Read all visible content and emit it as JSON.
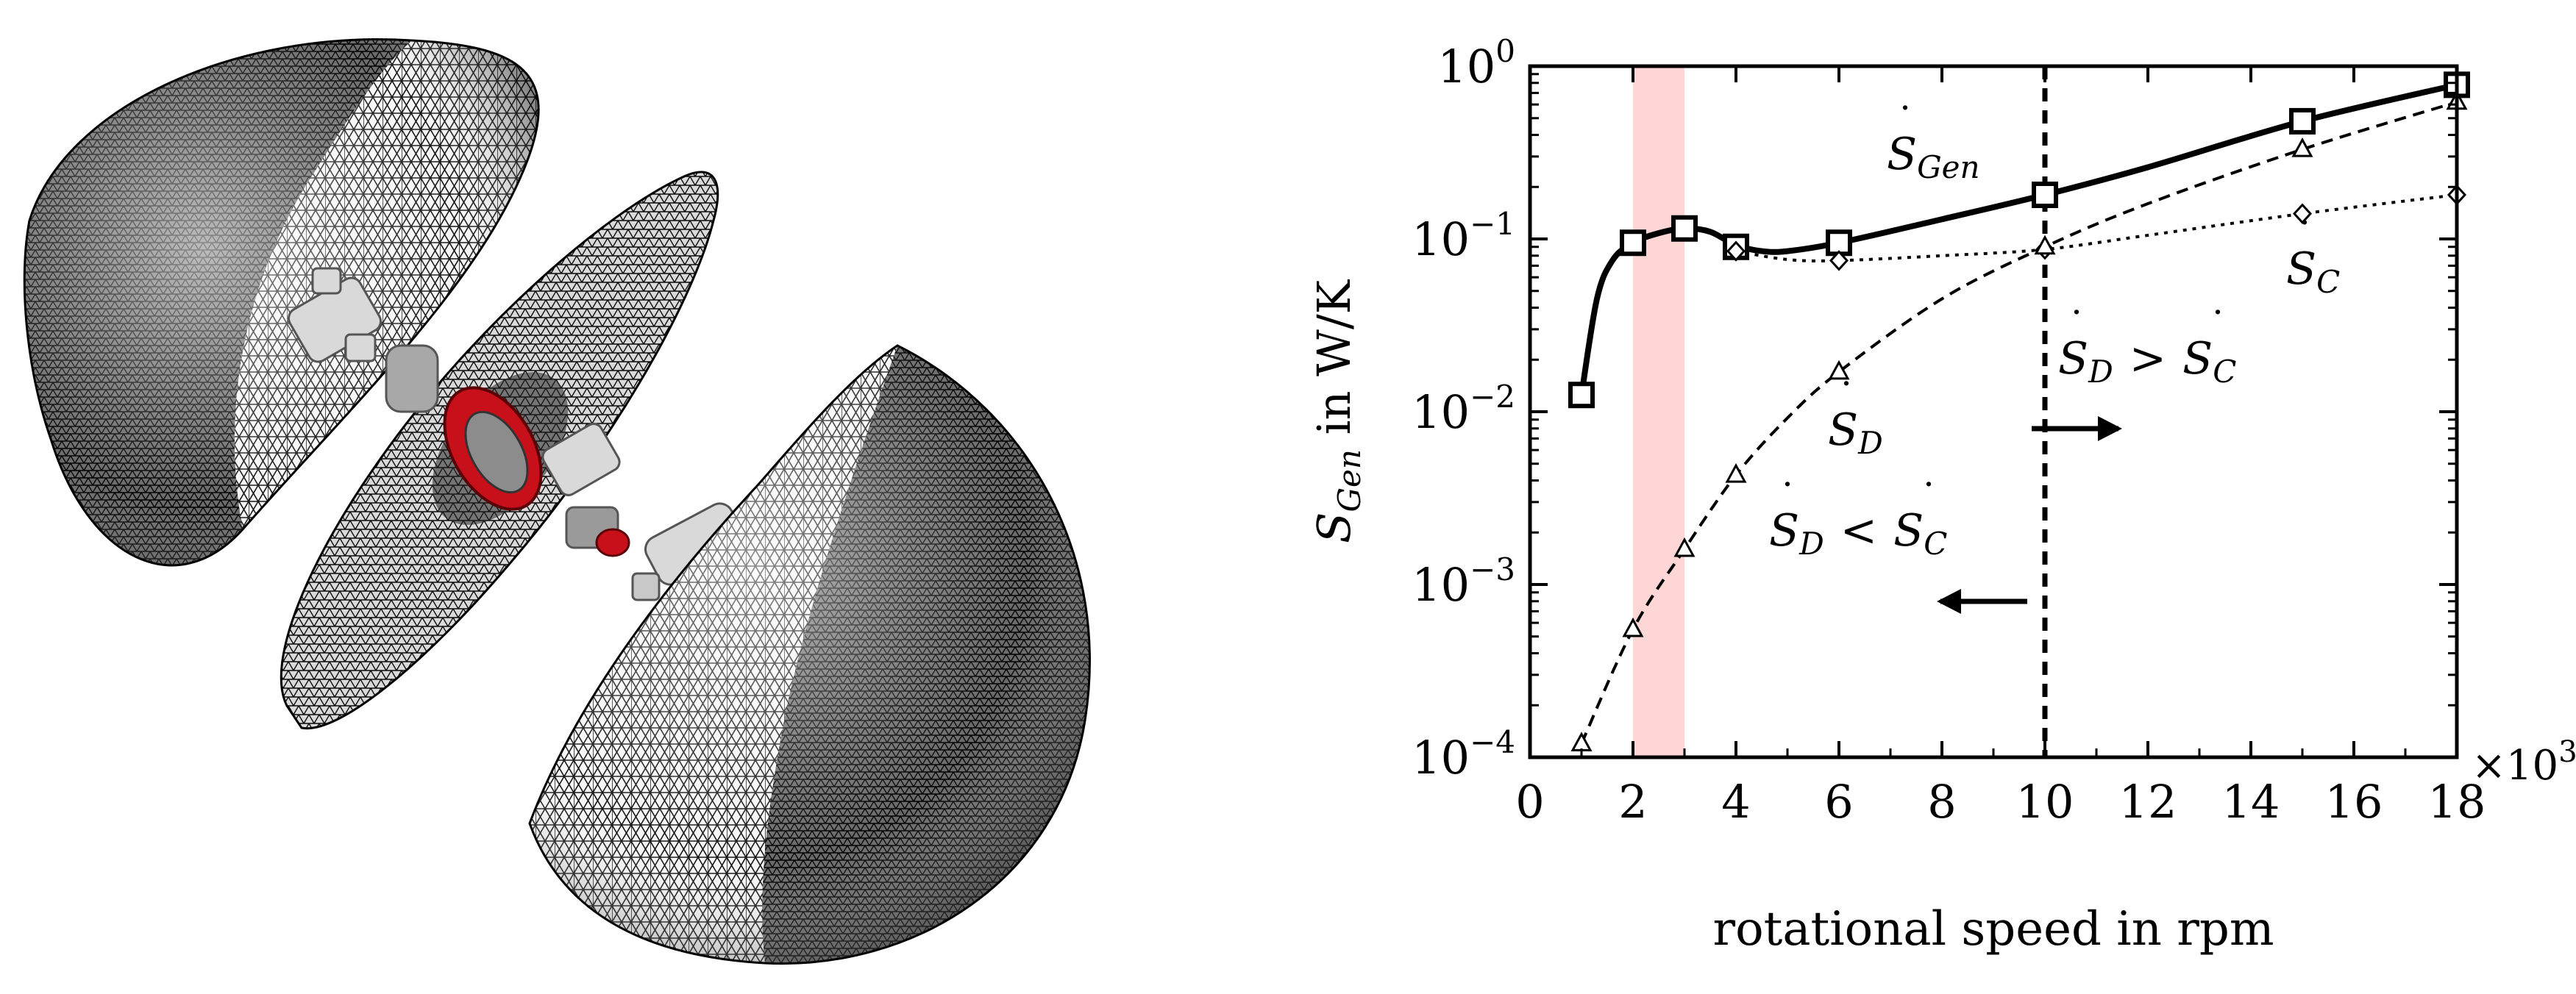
{
  "figure": {
    "left_panel": "fe-mesh-exploded-view"
  },
  "colors": {
    "mesh_stroke": "#111111",
    "mesh_fill": "#f4f4f4",
    "band": "#ffd6d6",
    "component_red": "#c8101a",
    "component_grey": "#bdbdbd",
    "ink": "#000000"
  },
  "chart_data": {
    "type": "line",
    "yscale": "log",
    "xlim": [
      0,
      18
    ],
    "ylim_exp": [
      -4,
      0
    ],
    "x_multiplier_label": "×10",
    "x_multiplier_exp": "3",
    "xticks": [
      "0",
      "2",
      "4",
      "6",
      "8",
      "10",
      "12",
      "14",
      "16",
      "18"
    ],
    "yticks": [
      {
        "base": "10",
        "exp": "0",
        "value": 0
      },
      {
        "base": "10",
        "exp": "−1",
        "value": -1
      },
      {
        "base": "10",
        "exp": "−2",
        "value": -2
      },
      {
        "base": "10",
        "exp": "−3",
        "value": -3
      },
      {
        "base": "10",
        "exp": "−4",
        "value": -4
      }
    ],
    "xlabel": "rotational speed in rpm",
    "ylabel": {
      "sym": "S",
      "sub": "Gen",
      "text": " in W/K"
    },
    "highlight_band": {
      "x": [
        2,
        3
      ]
    },
    "vline": {
      "x": 10
    },
    "series": [
      {
        "name": "S_Gen",
        "marker": "square",
        "style": "solid",
        "x": [
          1,
          2,
          3,
          4,
          6,
          10,
          15,
          18
        ],
        "y": [
          0.0125,
          0.095,
          0.115,
          0.09,
          0.095,
          0.18,
          0.48,
          0.78
        ],
        "curve_x": [
          1,
          1.3,
          1.6,
          2,
          2.5,
          3,
          3.5,
          4,
          4.5,
          5,
          6,
          8,
          10,
          12,
          15,
          18
        ],
        "curve_y": [
          0.0125,
          0.045,
          0.075,
          0.095,
          0.108,
          0.115,
          0.11,
          0.092,
          0.085,
          0.085,
          0.095,
          0.13,
          0.18,
          0.26,
          0.48,
          0.78
        ]
      },
      {
        "name": "S_C",
        "marker": "diamond",
        "style": "dotted",
        "x": [
          4,
          6,
          10,
          15,
          18
        ],
        "y": [
          0.085,
          0.075,
          0.087,
          0.14,
          0.18
        ],
        "curve_x": [
          4,
          5,
          6,
          8,
          10,
          12,
          15,
          18
        ],
        "curve_y": [
          0.085,
          0.076,
          0.075,
          0.08,
          0.087,
          0.105,
          0.14,
          0.18
        ]
      },
      {
        "name": "S_D",
        "marker": "triangle",
        "style": "dashed",
        "x": [
          1,
          2,
          3,
          4,
          6,
          10,
          15,
          18
        ],
        "y": [
          0.00012,
          0.00055,
          0.0016,
          0.0043,
          0.017,
          0.09,
          0.33,
          0.62
        ],
        "curve_x": [
          1,
          2,
          3,
          4,
          5,
          6,
          8,
          10,
          12,
          15,
          18
        ],
        "curve_y": [
          0.00012,
          0.00055,
          0.0016,
          0.0043,
          0.0092,
          0.017,
          0.045,
          0.09,
          0.16,
          0.33,
          0.62
        ]
      }
    ],
    "annotations": {
      "s_gen": {
        "sym": "S",
        "sub": "Gen"
      },
      "s_c": {
        "sym": "S",
        "sub": "C"
      },
      "s_d": {
        "sym": "S",
        "sub": "D"
      },
      "d_gt_c": {
        "lhs": "S",
        "lhs_sub": "D",
        "op": ">",
        "rhs": "S",
        "rhs_sub": "C"
      },
      "d_lt_c": {
        "lhs": "S",
        "lhs_sub": "D",
        "op": "<",
        "rhs": "S",
        "rhs_sub": "C"
      }
    }
  }
}
